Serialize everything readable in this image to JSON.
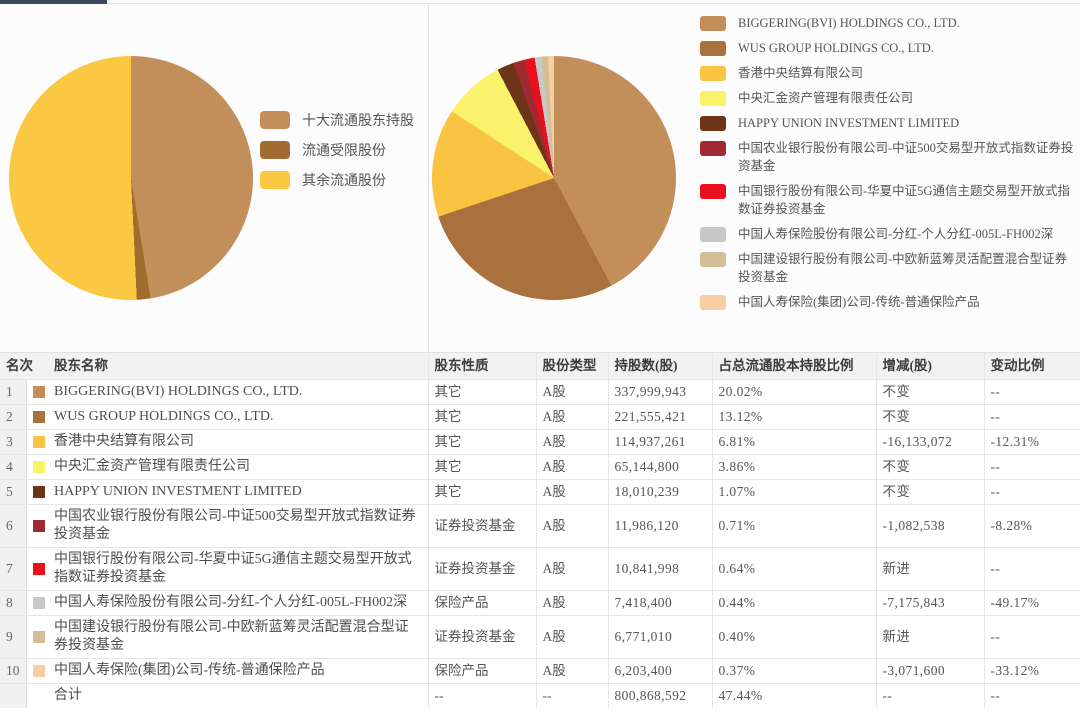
{
  "page": {
    "top_accent_color": "#3A4A5E"
  },
  "chart_data": [
    {
      "type": "pie",
      "name": "share-structure-pie",
      "title": "",
      "legend_position": "right",
      "start_angle_deg": 0,
      "direction": "clockwise",
      "labels": [
        "十大流通股东持股",
        "流通受限股份",
        "其余流通股份"
      ],
      "values": [
        47.44,
        1.8,
        50.76
      ],
      "colors": [
        "#C28F5B",
        "#A06C2F",
        "#FBC841"
      ]
    },
    {
      "type": "pie",
      "name": "top10-holders-pie",
      "title": "",
      "legend_position": "right",
      "start_angle_deg": 0,
      "direction": "clockwise",
      "labels": [
        "BIGGERING(BVI) HOLDINGS CO., LTD.",
        "WUS GROUP HOLDINGS CO., LTD.",
        "香港中央结算有限公司",
        "中央汇金资产管理有限责任公司",
        "HAPPY UNION INVESTMENT LIMITED",
        "中国农业银行股份有限公司-中证500交易型开放式指数证券投资基金",
        "中国银行股份有限公司-华夏中证5G通信主题交易型开放式指数证券投资基金",
        "中国人寿保险股份有限公司-分红-个人分红-005L-FH002深",
        "中国建设银行股份有限公司-中欧新蓝筹灵活配置混合型证券投资基金",
        "中国人寿保险(集团)公司-传统-普通保险产品"
      ],
      "values": [
        20.02,
        13.12,
        6.81,
        3.86,
        1.07,
        0.71,
        0.64,
        0.44,
        0.4,
        0.37
      ],
      "colors": [
        "#C28F5B",
        "#A8713D",
        "#F9C441",
        "#FAF26B",
        "#6E3418",
        "#A02A33",
        "#E90F1C",
        "#C8C8C8",
        "#D3BE95",
        "#F6D0A2"
      ]
    }
  ],
  "table": {
    "headers": [
      "名次",
      "股东名称",
      "股东性质",
      "股份类型",
      "持股数(股)",
      "占总流通股本持股比例",
      "增减(股)",
      "变动比例"
    ],
    "rows": [
      {
        "rank": "1",
        "color": "#C28F5B",
        "name": "BIGGERING(BVI) HOLDINGS CO., LTD.",
        "nature": "其它",
        "share_type": "A股",
        "shares": "337,999,943",
        "pct": "20.02%",
        "change": "不变",
        "change_pct": "--"
      },
      {
        "rank": "2",
        "color": "#A8713D",
        "name": "WUS GROUP HOLDINGS CO., LTD.",
        "nature": "其它",
        "share_type": "A股",
        "shares": "221,555,421",
        "pct": "13.12%",
        "change": "不变",
        "change_pct": "--"
      },
      {
        "rank": "3",
        "color": "#F9C441",
        "name": "香港中央结算有限公司",
        "nature": "其它",
        "share_type": "A股",
        "shares": "114,937,261",
        "pct": "6.81%",
        "change": "-16,133,072",
        "change_pct": "-12.31%"
      },
      {
        "rank": "4",
        "color": "#FAF26B",
        "name": "中央汇金资产管理有限责任公司",
        "nature": "其它",
        "share_type": "A股",
        "shares": "65,144,800",
        "pct": "3.86%",
        "change": "不变",
        "change_pct": "--"
      },
      {
        "rank": "5",
        "color": "#6E3418",
        "name": "HAPPY UNION INVESTMENT LIMITED",
        "nature": "其它",
        "share_type": "A股",
        "shares": "18,010,239",
        "pct": "1.07%",
        "change": "不变",
        "change_pct": "--"
      },
      {
        "rank": "6",
        "color": "#A02A33",
        "name": "中国农业银行股份有限公司-中证500交易型开放式指数证券投资基金",
        "nature": "证券投资基金",
        "share_type": "A股",
        "shares": "11,986,120",
        "pct": "0.71%",
        "change": "-1,082,538",
        "change_pct": "-8.28%"
      },
      {
        "rank": "7",
        "color": "#E90F1C",
        "name": "中国银行股份有限公司-华夏中证5G通信主题交易型开放式指数证券投资基金",
        "nature": "证券投资基金",
        "share_type": "A股",
        "shares": "10,841,998",
        "pct": "0.64%",
        "change": "新进",
        "change_pct": "--"
      },
      {
        "rank": "8",
        "color": "#C8C8C8",
        "name": "中国人寿保险股份有限公司-分红-个人分红-005L-FH002深",
        "nature": "保险产品",
        "share_type": "A股",
        "shares": "7,418,400",
        "pct": "0.44%",
        "change": "-7,175,843",
        "change_pct": "-49.17%"
      },
      {
        "rank": "9",
        "color": "#D3BE95",
        "name": "中国建设银行股份有限公司-中欧新蓝筹灵活配置混合型证券投资基金",
        "nature": "证券投资基金",
        "share_type": "A股",
        "shares": "6,771,010",
        "pct": "0.40%",
        "change": "新进",
        "change_pct": "--"
      },
      {
        "rank": "10",
        "color": "#F6D0A2",
        "name": "中国人寿保险(集团)公司-传统-普通保险产品",
        "nature": "保险产品",
        "share_type": "A股",
        "shares": "6,203,400",
        "pct": "0.37%",
        "change": "-3,071,600",
        "change_pct": "-33.12%"
      }
    ],
    "total_row": {
      "rank": "",
      "color": "",
      "name": "合计",
      "nature": "--",
      "share_type": "--",
      "shares": "800,868,592",
      "pct": "47.44%",
      "change": "--",
      "change_pct": "--"
    }
  }
}
